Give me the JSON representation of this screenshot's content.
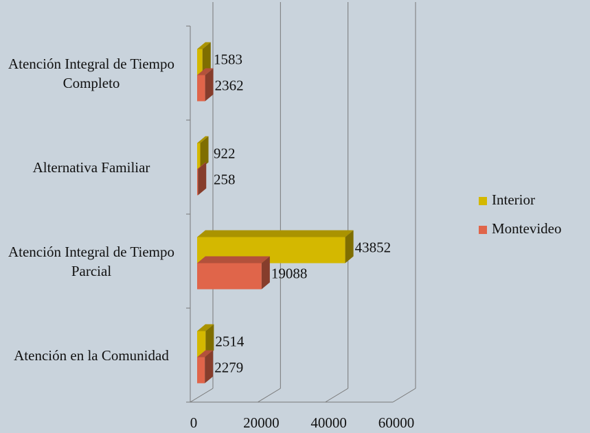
{
  "chart_data": {
    "type": "bar",
    "orientation": "horizontal",
    "categories": [
      "Atención Integral de Tiempo Completo",
      "Alternativa Familiar",
      "Atención Integral de Tiempo Parcial",
      "Atención en la Comunidad"
    ],
    "series": [
      {
        "name": "Interior",
        "color": "#d4b800",
        "values": [
          1583,
          922,
          43852,
          2514
        ]
      },
      {
        "name": "Montevideo",
        "color": "#e0654a",
        "values": [
          2362,
          258,
          19088,
          2279
        ]
      }
    ],
    "xlim": [
      0,
      60000
    ],
    "xticks": [
      0,
      20000,
      40000,
      60000
    ],
    "grid": true,
    "legend": "right"
  }
}
